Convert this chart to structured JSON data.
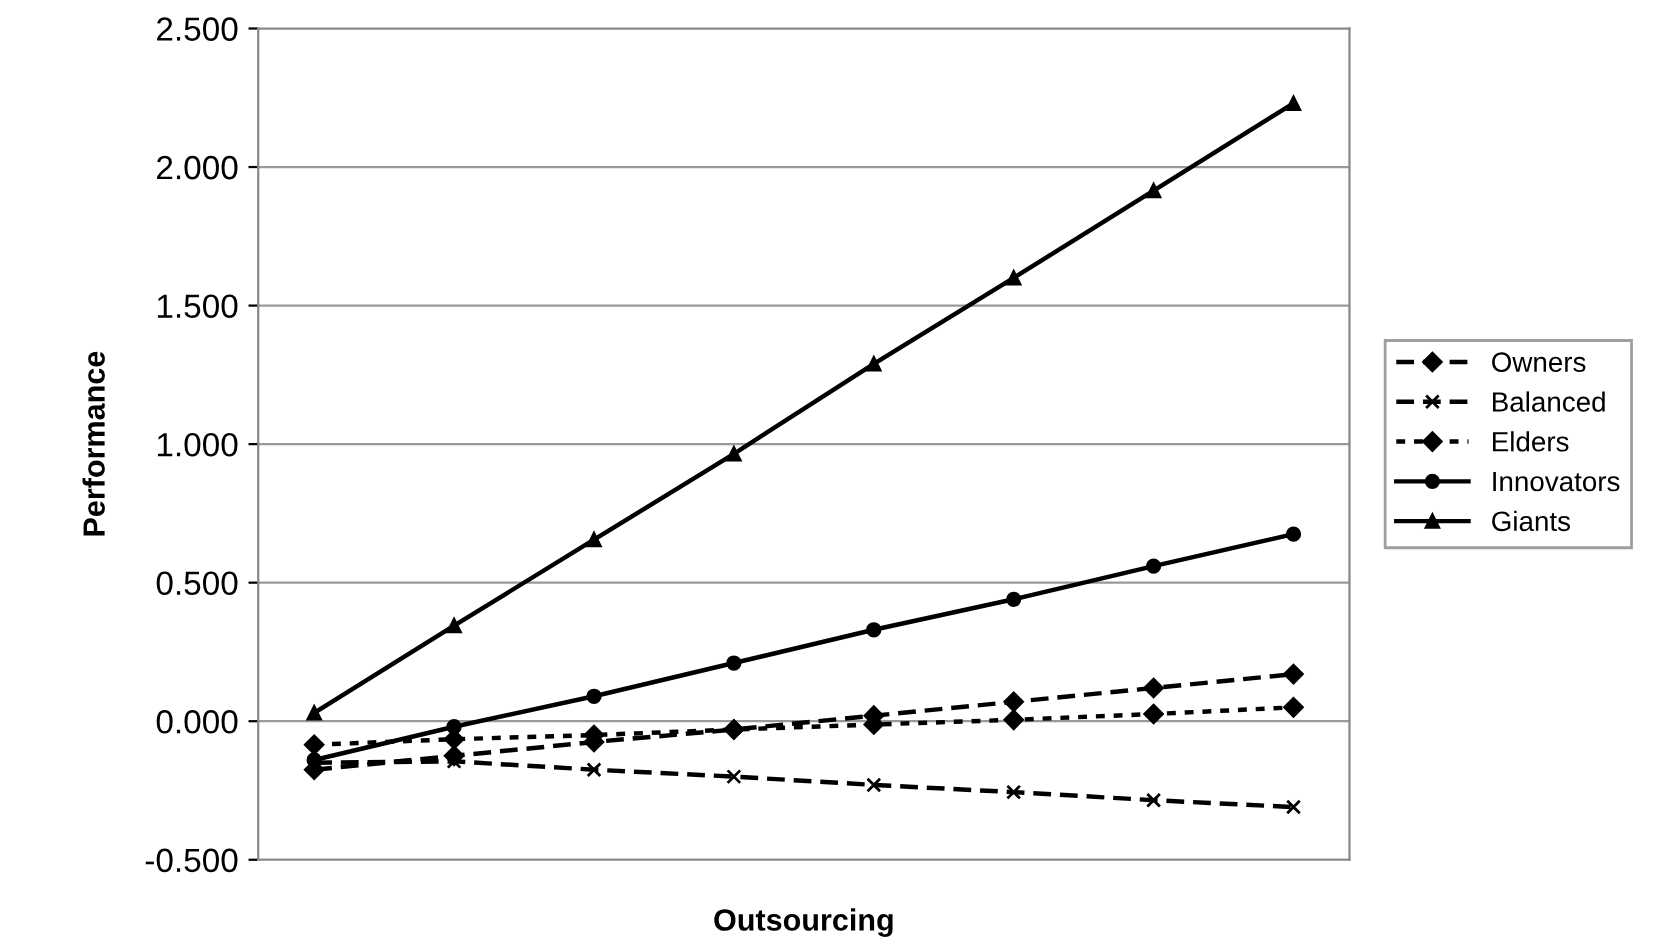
{
  "chart_data": {
    "type": "line",
    "xlabel": "Outsourcing",
    "ylabel": "Performance",
    "categories": [
      null,
      null,
      null,
      null,
      null,
      null,
      null,
      null
    ],
    "series": [
      {
        "name": "Owners",
        "color": "#000000",
        "marker": "diamond",
        "line_style": "dashed",
        "values": [
          -0.175,
          -0.125,
          -0.075,
          -0.03,
          0.02,
          0.07,
          0.12,
          0.17
        ]
      },
      {
        "name": "Balanced",
        "color": "#000000",
        "marker": "cross",
        "line_style": "dashed",
        "values": [
          -0.15,
          -0.145,
          -0.175,
          -0.2,
          -0.23,
          -0.256,
          -0.285,
          -0.31
        ]
      },
      {
        "name": "Elders",
        "color": "#000000",
        "marker": "diamond",
        "line_style": "dotted",
        "values": [
          -0.085,
          -0.065,
          -0.05,
          -0.03,
          -0.012,
          0.005,
          0.026,
          0.05
        ]
      },
      {
        "name": "Innovators",
        "color": "#000000",
        "marker": "circle",
        "line_style": "solid",
        "values": [
          -0.14,
          -0.02,
          0.09,
          0.21,
          0.33,
          0.44,
          0.56,
          0.675
        ]
      },
      {
        "name": "Giants",
        "color": "#000000",
        "marker": "triangle",
        "line_style": "solid",
        "values": [
          0.03,
          0.345,
          0.655,
          0.965,
          1.29,
          1.6,
          1.915,
          2.23
        ]
      }
    ],
    "ylim": [
      -0.5,
      2.5
    ],
    "yticks": [
      {
        "value": -0.5,
        "label": "-0.500"
      },
      {
        "value": 0,
        "label": "0.000"
      },
      {
        "value": 0.5,
        "label": "0.500"
      },
      {
        "value": 1,
        "label": "1.000"
      },
      {
        "value": 1.5,
        "label": "1.500"
      },
      {
        "value": 2,
        "label": "2.000"
      },
      {
        "value": 2.5,
        "label": "2.500"
      }
    ],
    "grid": "y",
    "legend": "right"
  }
}
